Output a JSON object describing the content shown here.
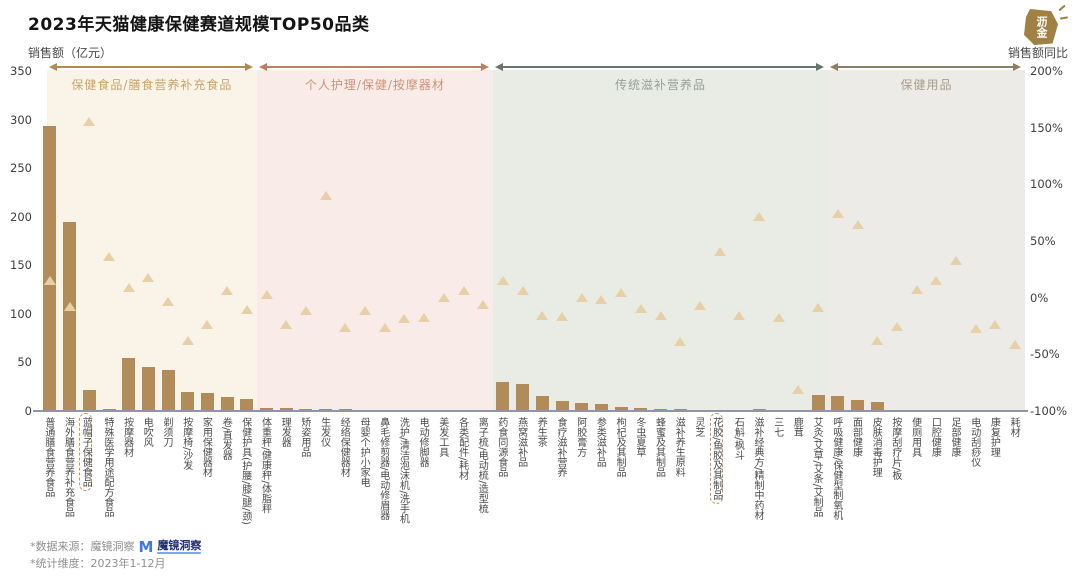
{
  "title": "2023年天猫健康保健赛道规模TOP50品类",
  "brand_logo": {
    "text": "沥金"
  },
  "left_axis": {
    "label": "销售额（亿元）",
    "ticks": [
      "350",
      "300",
      "250",
      "200",
      "150",
      "100",
      "50",
      "0"
    ],
    "min": 0,
    "max": 350
  },
  "right_axis": {
    "label": "销售额同比",
    "ticks": [
      "200%",
      "150%",
      "100%",
      "50%",
      "0%",
      "-50%",
      "-100%"
    ],
    "min": -100,
    "max": 200
  },
  "sections": [
    {
      "label": "保健食品/膳食营养补充食品",
      "category_count": 11,
      "bg": "#faf3e8",
      "arrow": "#b08b4f",
      "label_color": "#c9a469"
    },
    {
      "label": "个人护理/保健/按摩器材",
      "category_count": 12,
      "bg": "#f9ece8",
      "arrow": "#bc7f60",
      "label_color": "#cc9379"
    },
    {
      "label": "传统滋补营养品",
      "category_count": 17,
      "bg": "#e9ebe5",
      "arrow": "#64746e",
      "label_color": "#97a099"
    },
    {
      "label": "保健用品",
      "category_count": 10,
      "bg": "#ecebe8",
      "arrow": "#8f7e62",
      "label_color": "#a79d8a"
    }
  ],
  "colors": {
    "bar": "#b18c58",
    "triangle": "#e7d0a8",
    "baseline": "#8d97a8",
    "highlight_border": "#c09a5e"
  },
  "footnotes": {
    "source": "*数据来源：魔镜洞察",
    "source_logo_text": "魔镜洞察",
    "period": "*统计维度：2023年1-12月"
  },
  "chart_data": {
    "type": "bar",
    "title": "2023年天猫健康保健赛道规模TOP50品类",
    "xlabel": "",
    "ylabel_left": "销售额（亿元）",
    "ylabel_right": "销售额同比",
    "ylim_left": [
      0,
      350
    ],
    "ylim_right_pct": [
      -100,
      200
    ],
    "grid": false,
    "legend_position": "none",
    "categories": [
      "普通膳食营养食品",
      "海外膳食营养补充食品",
      "蓝帽子保健食品",
      "特殊医学用途配方食品",
      "按摩器材",
      "电吹风",
      "剃须刀",
      "按摩椅/沙发",
      "家用保健器材",
      "卷/直发器",
      "保健护具(护腰/膝/腿/颈)",
      "体重秤/健康秤/体脂秤",
      "理发器",
      "矫姿用品",
      "生发仪",
      "经络保健器材",
      "母婴个护小家电",
      "鼻毛修剪器/电动修眉器",
      "洗护/清洁泡沫机/洗手机",
      "电动修脚器",
      "美发工具",
      "各类配件/耗材",
      "离子梳/电动梳/造型梳",
      "药食同源食品",
      "燕窝滋补品",
      "养生茶",
      "食疗滋补营养",
      "阿胶膏方",
      "参类滋补品",
      "枸杞及其制品",
      "冬虫夏草",
      "蜂蜜及其制品",
      "滋补养生原料",
      "灵芝",
      "花胶/鱼胶及其制品",
      "石斛/枫斗",
      "滋补经典方/精制中药材",
      "三七",
      "鹿茸",
      "艾灸/艾草/艾条/艾制品",
      "呼吸健康/保健型制氧机",
      "面部健康",
      "皮肤消毒护理",
      "按摩刮疗片/板",
      "便厕用具",
      "口腔健康",
      "足部健康",
      "电动刮痧仪",
      "康复护理",
      "耗材"
    ],
    "series": [
      {
        "name": "销售额（亿元）",
        "type": "bar",
        "values": [
          293,
          195,
          22,
          2,
          55,
          45,
          42,
          20,
          19,
          14,
          12,
          3,
          3,
          2.5,
          2,
          2,
          1.5,
          1.5,
          1,
          1,
          0.8,
          0.8,
          0.5,
          30,
          28,
          15,
          10,
          8,
          7.5,
          4.5,
          3.5,
          2.5,
          2,
          1.5,
          0.8,
          1.2,
          1.8,
          0.8,
          0.6,
          17,
          16,
          11,
          9,
          0.8,
          1,
          0.8,
          0.7,
          0.6,
          0.8,
          0.5
        ]
      },
      {
        "name": "销售额同比（%）",
        "type": "scatter",
        "values": [
          15,
          -8,
          155,
          36,
          9,
          17,
          -4,
          -38,
          -24,
          6,
          -11,
          2,
          -24,
          -12,
          90,
          -27,
          -12,
          -27,
          -19,
          -18,
          0,
          6,
          -6,
          15,
          6,
          -16,
          -17,
          0,
          -2,
          4,
          -10,
          -16,
          -39,
          -7,
          40,
          -16,
          71,
          -18,
          -81,
          -9,
          74,
          64,
          -38,
          -26,
          7,
          15,
          32,
          -28,
          -24,
          -42
        ]
      }
    ],
    "highlighted_categories": [
      "蓝帽子保健食品",
      "花胶/鱼胶及其制品"
    ],
    "section_groups": [
      {
        "label": "保健食品/膳食营养补充食品",
        "from": "普通膳食营养食品",
        "to": "保健护具(护腰/膝/腿/颈)"
      },
      {
        "label": "个人护理/保健/按摩器材",
        "from": "体重秤/健康秤/体脂秤",
        "to": "离子梳/电动梳/造型梳"
      },
      {
        "label": "传统滋补营养品",
        "from": "药食同源食品",
        "to": "艾灸/艾草/艾条/艾制品"
      },
      {
        "label": "保健用品",
        "from": "呼吸健康/保健型制氧机",
        "to": "耗材"
      }
    ]
  }
}
